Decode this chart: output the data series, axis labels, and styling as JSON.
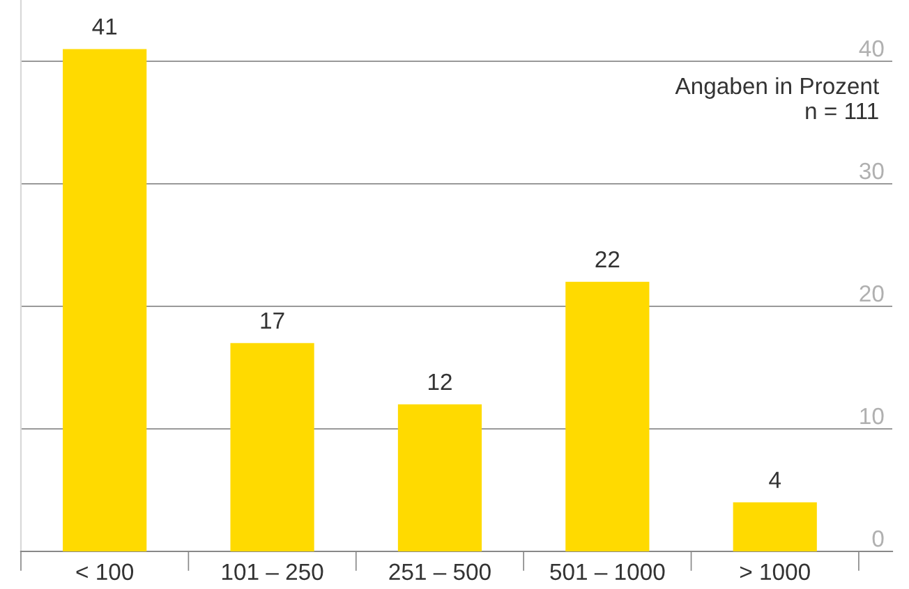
{
  "chart_data": {
    "type": "bar",
    "categories": [
      "< 100",
      "101 – 250",
      "251 – 500",
      "501 – 1000",
      "> 1000"
    ],
    "values": [
      41,
      17,
      12,
      22,
      4
    ],
    "color": "#ffda00",
    "ylim": [
      0,
      45
    ],
    "yticks": [
      0,
      10,
      20,
      30,
      40
    ],
    "grid": "y",
    "data_labels": true,
    "annotations": [
      "Angaben in Prozent\nn = 111"
    ]
  }
}
